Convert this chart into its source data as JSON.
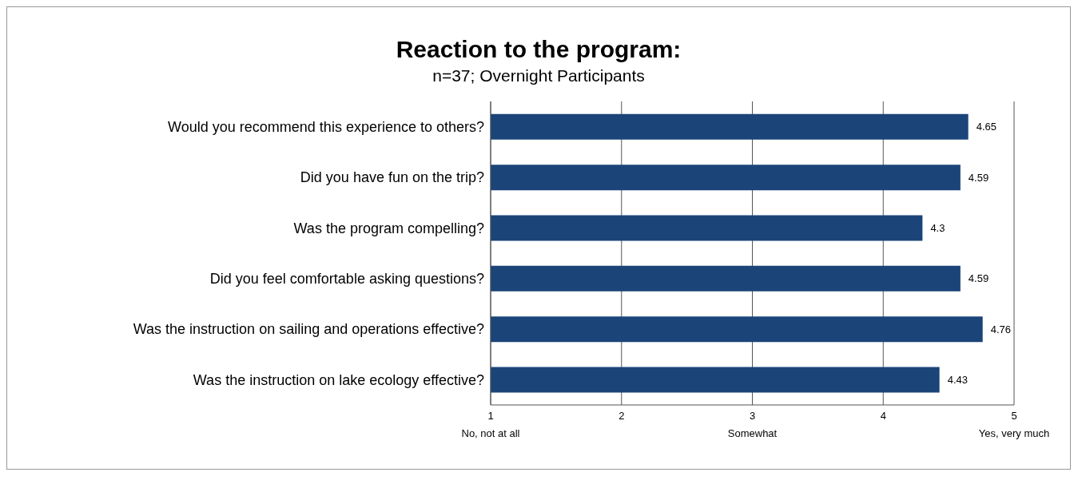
{
  "chart_data": {
    "type": "bar",
    "orientation": "horizontal",
    "title": "Reaction to the program:",
    "subtitle": "n=37; Overnight Participants",
    "categories": [
      "Would you recommend this experience to others?",
      "Did you have fun on the trip?",
      "Was the program compelling?",
      "Did you feel comfortable asking questions?",
      "Was the instruction on sailing and operations effective?",
      "Was the instruction on lake ecology effective?"
    ],
    "values": [
      4.65,
      4.59,
      4.3,
      4.59,
      4.76,
      4.43
    ],
    "color": "#1b4479",
    "xlim": [
      1,
      5
    ],
    "xticks": [
      {
        "value": 1,
        "label": "1\nNo, not at all"
      },
      2,
      {
        "value": 3,
        "label": "3\nSomewhat"
      },
      4,
      {
        "value": 5,
        "label": "5\nYes, very much"
      }
    ],
    "grid": "x",
    "data_labels": true
  }
}
